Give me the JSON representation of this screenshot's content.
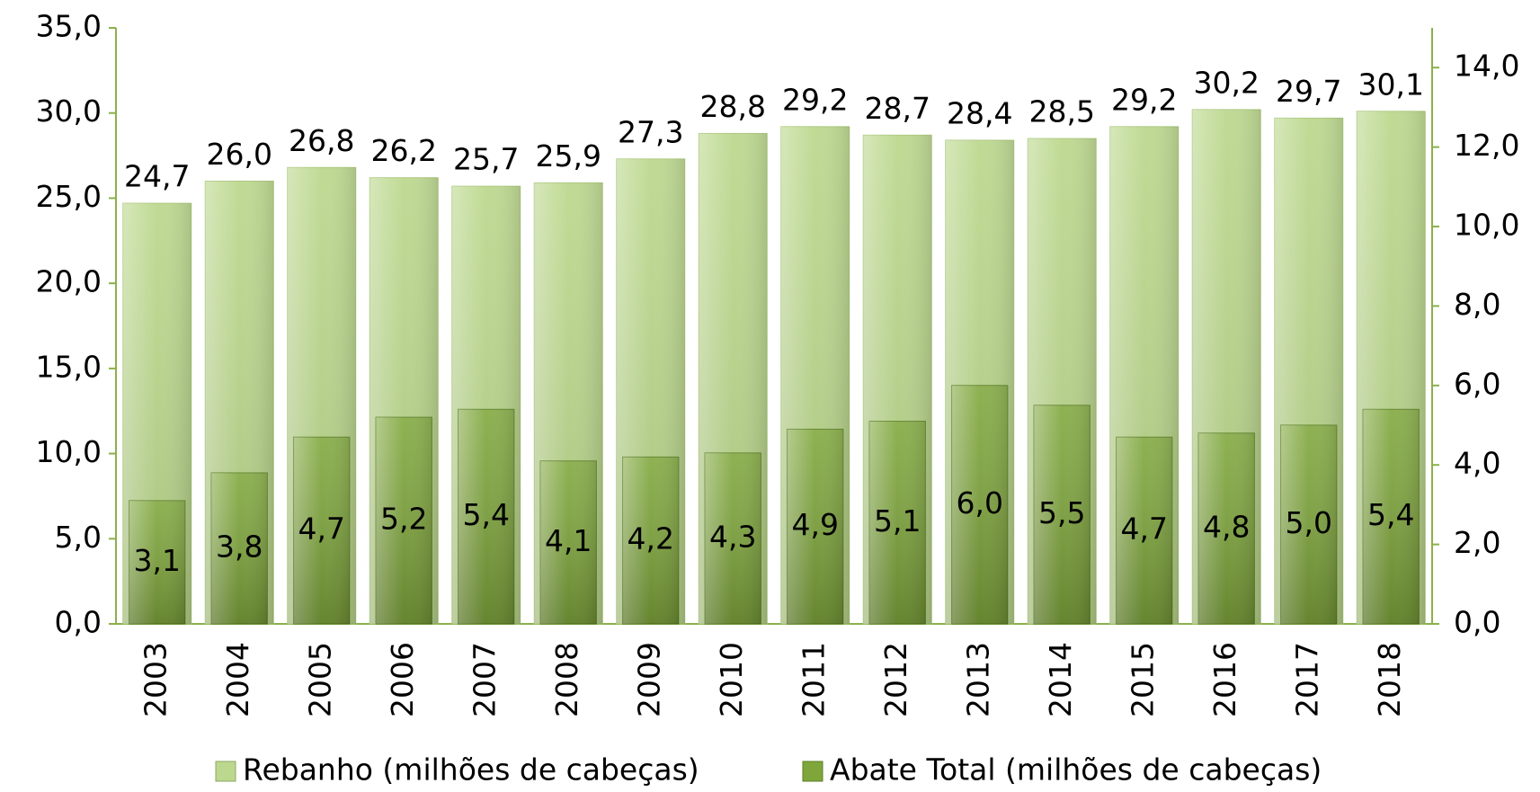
{
  "chart_data": {
    "type": "bar",
    "categories": [
      "2003",
      "2004",
      "2005",
      "2006",
      "2007",
      "2008",
      "2009",
      "2010",
      "2011",
      "2012",
      "2013",
      "2014",
      "2015",
      "2016",
      "2017",
      "2018"
    ],
    "series": [
      {
        "name": "Rebanho (milhões de cabeças)",
        "color": "#bcd88e",
        "values": [
          24.7,
          26.0,
          26.8,
          26.2,
          25.7,
          25.9,
          27.3,
          28.8,
          29.2,
          28.7,
          28.4,
          28.5,
          29.2,
          30.2,
          29.7,
          30.1
        ],
        "value_labels": [
          "24,7",
          "26,0",
          "26,8",
          "26,2",
          "25,7",
          "25,9",
          "27,3",
          "28,8",
          "29,2",
          "28,7",
          "28,4",
          "28,5",
          "29,2",
          "30,2",
          "29,7",
          "30,1"
        ]
      },
      {
        "name": "Abate Total (milhões de cabeças)",
        "color": "#7ea63a",
        "axis": "y2",
        "values": [
          3.1,
          3.8,
          4.7,
          5.2,
          5.4,
          4.1,
          4.2,
          4.3,
          4.9,
          5.1,
          6.0,
          5.5,
          4.7,
          4.8,
          5.0,
          5.4
        ],
        "value_labels": [
          "3,1",
          "3,8",
          "4,7",
          "5,2",
          "5,4",
          "4,1",
          "4,2",
          "4,3",
          "4,9",
          "5,1",
          "6,0",
          "5,5",
          "4,7",
          "4,8",
          "5,0",
          "5,4"
        ]
      }
    ],
    "ylim": [
      0,
      35
    ],
    "yticks": [
      {
        "value": 0,
        "label": "0,0"
      },
      {
        "value": 5,
        "label": "5,0"
      },
      {
        "value": 10,
        "label": "10,0"
      },
      {
        "value": 15,
        "label": "15,0"
      },
      {
        "value": 20,
        "label": "20,0"
      },
      {
        "value": 25,
        "label": "25,0"
      },
      {
        "value": 30,
        "label": "30,0"
      },
      {
        "value": 35,
        "label": "35,0"
      }
    ],
    "y2lim": [
      0,
      15
    ],
    "y2ticks": [
      {
        "value": 0,
        "label": "0,0"
      },
      {
        "value": 2,
        "label": "2,0"
      },
      {
        "value": 4,
        "label": "4,0"
      },
      {
        "value": 6,
        "label": "6,0"
      },
      {
        "value": 8,
        "label": "8,0"
      },
      {
        "value": 10,
        "label": "10,0"
      },
      {
        "value": 12,
        "label": "12,0"
      },
      {
        "value": 14,
        "label": "14,0"
      }
    ],
    "legend": "bottom"
  }
}
